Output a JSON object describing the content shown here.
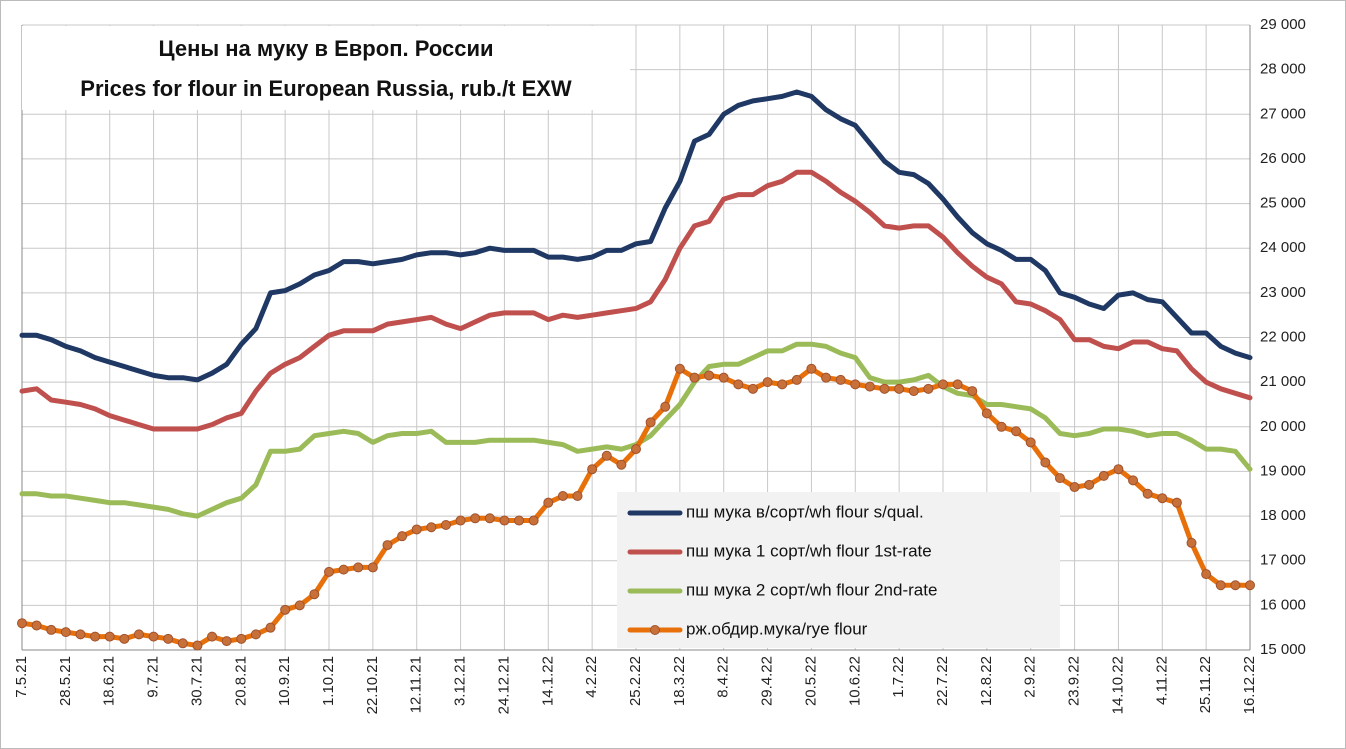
{
  "chart_data": {
    "type": "line",
    "title": "Цены на муку в Европ. России",
    "subtitle": "Prices for flour in European Russia, rub./t EXW",
    "categories": [
      "7.5.21",
      null,
      null,
      "28.5.21",
      null,
      null,
      "18.6.21",
      null,
      null,
      "9.7.21",
      null,
      null,
      "30.7.21",
      null,
      null,
      "20.8.21",
      null,
      null,
      "10.9.21",
      null,
      null,
      "1.10.21",
      null,
      null,
      "22.10.21",
      null,
      null,
      "12.11.21",
      null,
      null,
      "3.12.21",
      null,
      null,
      "24.12.21",
      null,
      null,
      "14.1.22",
      null,
      null,
      "4.2.22",
      null,
      null,
      "25.2.22",
      null,
      null,
      "18.3.22",
      null,
      null,
      "8.4.22",
      null,
      null,
      "29.4.22",
      null,
      null,
      "20.5.22",
      null,
      null,
      "10.6.22",
      null,
      null,
      "1.7.22",
      null,
      null,
      "22.7.22",
      null,
      null,
      "12.8.22",
      null,
      null,
      "2.9.22",
      null,
      null,
      "23.9.22",
      null,
      null,
      "14.10.22",
      null,
      null,
      "4.11.22",
      null,
      null,
      "25.11.22",
      null,
      null,
      "16.12.22"
    ],
    "series": [
      {
        "name": "пш мука  в/сорт/wh  flour s/qual.",
        "color": "#1f3864",
        "values": [
          22050,
          22050,
          21950,
          21800,
          21700,
          21550,
          21450,
          21350,
          21250,
          21150,
          21100,
          21100,
          21050,
          21200,
          21400,
          21850,
          22200,
          23000,
          23050,
          23200,
          23400,
          23500,
          23700,
          23700,
          23650,
          23700,
          23750,
          23850,
          23900,
          23900,
          23850,
          23900,
          24000,
          23950,
          23950,
          23950,
          23800,
          23800,
          23750,
          23800,
          23950,
          23950,
          24100,
          24150,
          24900,
          25500,
          26400,
          26550,
          27000,
          27200,
          27300,
          27350,
          27400,
          27500,
          27400,
          27100,
          26900,
          26750,
          26350,
          25950,
          25700,
          25650,
          25450,
          25100,
          24700,
          24350,
          24100,
          23950,
          23750,
          23750,
          23500,
          23000,
          22900,
          22750,
          22650,
          22950,
          23000,
          22850,
          22800,
          22450,
          22100,
          22100,
          21800,
          21650,
          21550
        ]
      },
      {
        "name": "пш мука  1 сорт/wh  flour  1st-rate",
        "color": "#c0504d",
        "values": [
          20800,
          20850,
          20600,
          20550,
          20500,
          20400,
          20250,
          20150,
          20050,
          19950,
          19950,
          19950,
          19950,
          20050,
          20200,
          20300,
          20800,
          21200,
          21400,
          21550,
          21800,
          22050,
          22150,
          22150,
          22150,
          22300,
          22350,
          22400,
          22450,
          22300,
          22200,
          22350,
          22500,
          22550,
          22550,
          22550,
          22400,
          22500,
          22450,
          22500,
          22550,
          22600,
          22650,
          22800,
          23300,
          24000,
          24500,
          24600,
          25100,
          25200,
          25200,
          25400,
          25500,
          25700,
          25700,
          25500,
          25250,
          25050,
          24800,
          24500,
          24450,
          24500,
          24500,
          24250,
          23900,
          23600,
          23350,
          23200,
          22800,
          22750,
          22600,
          22400,
          21950,
          21950,
          21800,
          21750,
          21900,
          21900,
          21750,
          21700,
          21300,
          21000,
          20850,
          20750,
          20650
        ]
      },
      {
        "name": "пш мука  2 сорт/wh  flour  2nd-rate",
        "color": "#9bbb59",
        "values": [
          18500,
          18500,
          18450,
          18450,
          18400,
          18350,
          18300,
          18300,
          18250,
          18200,
          18150,
          18050,
          18000,
          18150,
          18300,
          18400,
          18700,
          19450,
          19450,
          19500,
          19800,
          19850,
          19900,
          19850,
          19650,
          19800,
          19850,
          19850,
          19900,
          19650,
          19650,
          19650,
          19700,
          19700,
          19700,
          19700,
          19650,
          19600,
          19450,
          19500,
          19550,
          19500,
          19600,
          19800,
          20150,
          20500,
          21000,
          21350,
          21400,
          21400,
          21550,
          21700,
          21700,
          21850,
          21850,
          21800,
          21650,
          21550,
          21100,
          21000,
          21000,
          21050,
          21150,
          20900,
          20750,
          20700,
          20500,
          20500,
          20450,
          20400,
          20200,
          19850,
          19800,
          19850,
          19950,
          19950,
          19900,
          19800,
          19850,
          19850,
          19700,
          19500,
          19500,
          19450,
          19050
        ]
      },
      {
        "name": "рж.обдир.мука/rye  flour",
        "color": "#e8700a",
        "marker_color": "#c8703a",
        "values": [
          15600,
          15550,
          15450,
          15400,
          15350,
          15300,
          15300,
          15250,
          15350,
          15300,
          15250,
          15150,
          15100,
          15300,
          15200,
          15250,
          15350,
          15500,
          15900,
          16000,
          16250,
          16750,
          16800,
          16850,
          16850,
          17350,
          17550,
          17700,
          17750,
          17800,
          17900,
          17950,
          17950,
          17900,
          17900,
          17900,
          18300,
          18450,
          18450,
          19050,
          19350,
          19150,
          19500,
          20100,
          20450,
          21300,
          21100,
          21150,
          21100,
          20950,
          20850,
          21000,
          20950,
          21050,
          21300,
          21100,
          21050,
          20950,
          20900,
          20850,
          20850,
          20800,
          20850,
          20950,
          20950,
          20800,
          20300,
          20000,
          19900,
          19650,
          19200,
          18850,
          18650,
          18700,
          18900,
          19050,
          18800,
          18500,
          18400,
          18300,
          17400,
          16700,
          16450,
          16450,
          16450
        ]
      }
    ],
    "ylim": [
      15000,
      29000
    ],
    "yticks": [
      {
        "value": 15000,
        "label": "15 000"
      },
      {
        "value": 16000,
        "label": "16 000"
      },
      {
        "value": 17000,
        "label": "17 000"
      },
      {
        "value": 18000,
        "label": "18 000"
      },
      {
        "value": 19000,
        "label": "19 000"
      },
      {
        "value": 20000,
        "label": "20 000"
      },
      {
        "value": 21000,
        "label": "21 000"
      },
      {
        "value": 22000,
        "label": "22 000"
      },
      {
        "value": 23000,
        "label": "23 000"
      },
      {
        "value": 24000,
        "label": "24 000"
      },
      {
        "value": 25000,
        "label": "25 000"
      },
      {
        "value": 26000,
        "label": "26 000"
      },
      {
        "value": 27000,
        "label": "27 000"
      },
      {
        "value": 28000,
        "label": "28 000"
      },
      {
        "value": 29000,
        "label": "29 000"
      }
    ],
    "grid": true
  }
}
